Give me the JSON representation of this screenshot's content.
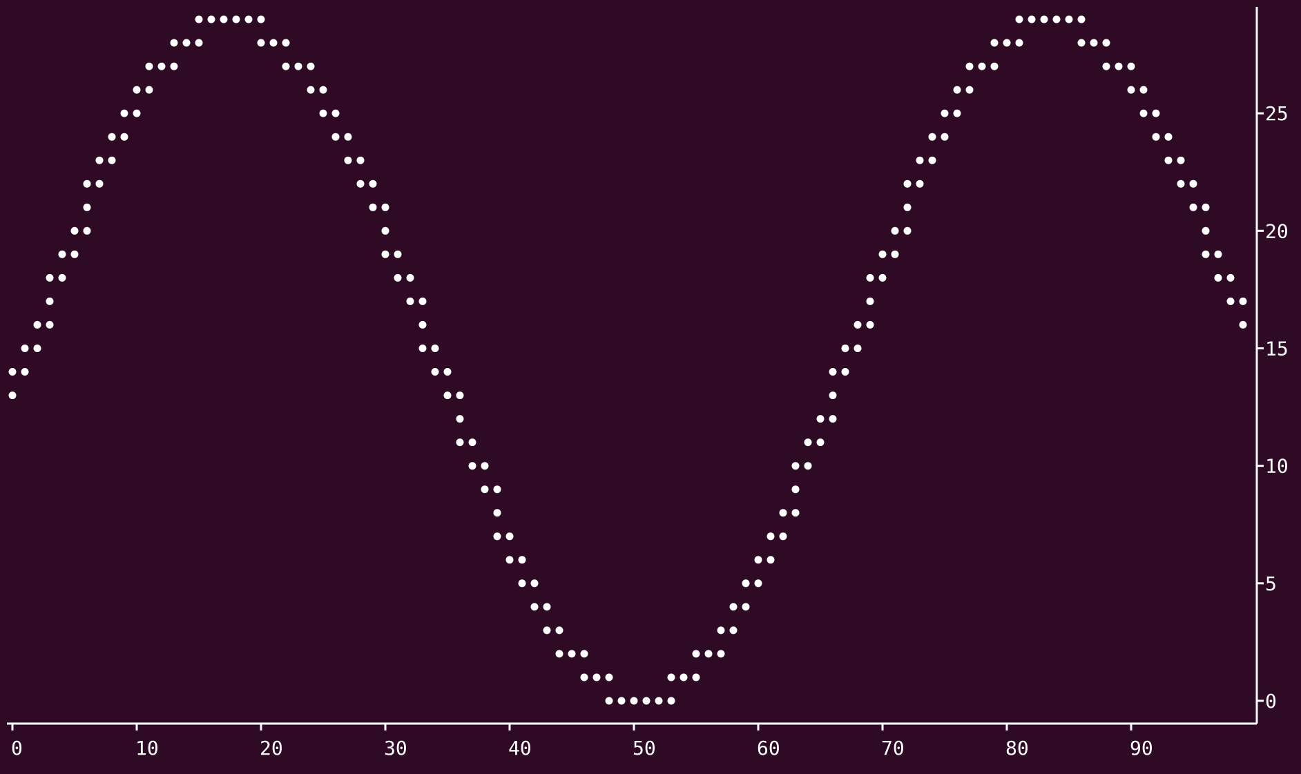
{
  "colors": {
    "background": "#2e0a24",
    "foreground": "#ffffff"
  },
  "chart_data": {
    "type": "scatter",
    "title": "",
    "xlabel": "",
    "ylabel": "",
    "xlim": [
      0,
      99
    ],
    "ylim": [
      0,
      29
    ],
    "x_ticks": [
      0,
      10,
      20,
      30,
      40,
      50,
      60,
      70,
      80,
      90
    ],
    "y_ticks": [
      0,
      5,
      10,
      15,
      20,
      25
    ],
    "y_axis_position": "right",
    "grid": false,
    "legend": "none",
    "series": [
      {
        "marker": "dot",
        "points": [
          [
            0,
            13
          ],
          [
            0,
            14
          ],
          [
            1,
            14
          ],
          [
            1,
            15
          ],
          [
            2,
            15
          ],
          [
            2,
            16
          ],
          [
            3,
            16
          ],
          [
            3,
            17
          ],
          [
            3,
            18
          ],
          [
            4,
            18
          ],
          [
            4,
            19
          ],
          [
            5,
            19
          ],
          [
            5,
            20
          ],
          [
            6,
            20
          ],
          [
            6,
            21
          ],
          [
            6,
            22
          ],
          [
            7,
            22
          ],
          [
            7,
            23
          ],
          [
            8,
            23
          ],
          [
            8,
            24
          ],
          [
            9,
            24
          ],
          [
            9,
            25
          ],
          [
            10,
            25
          ],
          [
            10,
            26
          ],
          [
            11,
            26
          ],
          [
            11,
            27
          ],
          [
            12,
            27
          ],
          [
            13,
            27
          ],
          [
            13,
            28
          ],
          [
            14,
            28
          ],
          [
            15,
            28
          ],
          [
            15,
            29
          ],
          [
            16,
            29
          ],
          [
            17,
            29
          ],
          [
            18,
            29
          ],
          [
            19,
            29
          ],
          [
            20,
            29
          ],
          [
            20,
            28
          ],
          [
            21,
            28
          ],
          [
            22,
            28
          ],
          [
            22,
            27
          ],
          [
            23,
            27
          ],
          [
            24,
            27
          ],
          [
            24,
            26
          ],
          [
            25,
            26
          ],
          [
            25,
            25
          ],
          [
            26,
            25
          ],
          [
            26,
            24
          ],
          [
            27,
            24
          ],
          [
            27,
            23
          ],
          [
            28,
            23
          ],
          [
            28,
            22
          ],
          [
            29,
            22
          ],
          [
            29,
            21
          ],
          [
            30,
            21
          ],
          [
            30,
            20
          ],
          [
            30,
            19
          ],
          [
            31,
            19
          ],
          [
            31,
            18
          ],
          [
            32,
            18
          ],
          [
            32,
            17
          ],
          [
            33,
            17
          ],
          [
            33,
            16
          ],
          [
            33,
            15
          ],
          [
            34,
            15
          ],
          [
            34,
            14
          ],
          [
            35,
            14
          ],
          [
            35,
            13
          ],
          [
            36,
            13
          ],
          [
            36,
            12
          ],
          [
            36,
            11
          ],
          [
            37,
            11
          ],
          [
            37,
            10
          ],
          [
            38,
            10
          ],
          [
            38,
            9
          ],
          [
            39,
            9
          ],
          [
            39,
            8
          ],
          [
            39,
            7
          ],
          [
            40,
            7
          ],
          [
            40,
            6
          ],
          [
            41,
            6
          ],
          [
            41,
            5
          ],
          [
            42,
            5
          ],
          [
            42,
            4
          ],
          [
            43,
            4
          ],
          [
            43,
            3
          ],
          [
            44,
            3
          ],
          [
            44,
            2
          ],
          [
            45,
            2
          ],
          [
            46,
            2
          ],
          [
            46,
            1
          ],
          [
            47,
            1
          ],
          [
            48,
            1
          ],
          [
            48,
            0
          ],
          [
            49,
            0
          ],
          [
            50,
            0
          ],
          [
            51,
            0
          ],
          [
            52,
            0
          ],
          [
            53,
            0
          ],
          [
            53,
            1
          ],
          [
            54,
            1
          ],
          [
            55,
            1
          ],
          [
            55,
            2
          ],
          [
            56,
            2
          ],
          [
            57,
            2
          ],
          [
            57,
            3
          ],
          [
            58,
            3
          ],
          [
            58,
            4
          ],
          [
            59,
            4
          ],
          [
            59,
            5
          ],
          [
            60,
            5
          ],
          [
            60,
            6
          ],
          [
            61,
            6
          ],
          [
            61,
            7
          ],
          [
            62,
            7
          ],
          [
            62,
            8
          ],
          [
            63,
            8
          ],
          [
            63,
            9
          ],
          [
            63,
            10
          ],
          [
            64,
            10
          ],
          [
            64,
            11
          ],
          [
            65,
            11
          ],
          [
            65,
            12
          ],
          [
            66,
            12
          ],
          [
            66,
            13
          ],
          [
            66,
            14
          ],
          [
            67,
            14
          ],
          [
            67,
            15
          ],
          [
            68,
            15
          ],
          [
            68,
            16
          ],
          [
            69,
            16
          ],
          [
            69,
            17
          ],
          [
            69,
            18
          ],
          [
            70,
            18
          ],
          [
            70,
            19
          ],
          [
            71,
            19
          ],
          [
            71,
            20
          ],
          [
            72,
            20
          ],
          [
            72,
            21
          ],
          [
            72,
            22
          ],
          [
            73,
            22
          ],
          [
            73,
            23
          ],
          [
            74,
            23
          ],
          [
            74,
            24
          ],
          [
            75,
            24
          ],
          [
            75,
            25
          ],
          [
            76,
            25
          ],
          [
            76,
            26
          ],
          [
            77,
            26
          ],
          [
            77,
            27
          ],
          [
            78,
            27
          ],
          [
            79,
            27
          ],
          [
            79,
            28
          ],
          [
            80,
            28
          ],
          [
            81,
            28
          ],
          [
            81,
            29
          ],
          [
            82,
            29
          ],
          [
            83,
            29
          ],
          [
            84,
            29
          ],
          [
            85,
            29
          ],
          [
            86,
            29
          ],
          [
            86,
            28
          ],
          [
            87,
            28
          ],
          [
            88,
            28
          ],
          [
            88,
            27
          ],
          [
            89,
            27
          ],
          [
            90,
            27
          ],
          [
            90,
            26
          ],
          [
            91,
            26
          ],
          [
            91,
            25
          ],
          [
            92,
            25
          ],
          [
            92,
            24
          ],
          [
            93,
            24
          ],
          [
            93,
            23
          ],
          [
            94,
            23
          ],
          [
            94,
            22
          ],
          [
            95,
            22
          ],
          [
            95,
            21
          ],
          [
            96,
            21
          ],
          [
            96,
            20
          ],
          [
            96,
            19
          ],
          [
            97,
            19
          ],
          [
            97,
            18
          ],
          [
            98,
            18
          ],
          [
            98,
            17
          ],
          [
            99,
            17
          ],
          [
            99,
            16
          ]
        ]
      }
    ]
  }
}
